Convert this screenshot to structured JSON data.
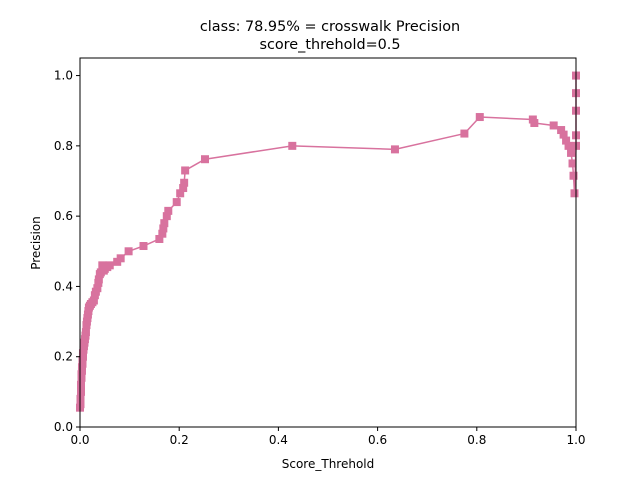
{
  "chart_data": {
    "type": "line",
    "title": "class: 78.95% = crosswalk Precision",
    "subtitle": "score_threhold=0.5",
    "xlabel": "Score_Threhold",
    "ylabel": "Precision",
    "xlim": [
      0.0,
      1.0
    ],
    "ylim": [
      0.0,
      1.05
    ],
    "xticks": [
      "0.0",
      "0.2",
      "0.4",
      "0.6",
      "0.8",
      "1.0"
    ],
    "yticks": [
      "0.0",
      "0.2",
      "0.4",
      "0.6",
      "0.8",
      "1.0"
    ],
    "grid": false,
    "legend": "none",
    "marker": "square",
    "color": "#d8729e",
    "series": [
      {
        "x": [
          0.0,
          0.001,
          0.001,
          0.002,
          0.002,
          0.003,
          0.003,
          0.004,
          0.004,
          0.005,
          0.005,
          0.006,
          0.006,
          0.007,
          0.008,
          0.009,
          0.01,
          0.011,
          0.012,
          0.013,
          0.014,
          0.015,
          0.016,
          0.017,
          0.018,
          0.02,
          0.022,
          0.025,
          0.028,
          0.03,
          0.032,
          0.035,
          0.037,
          0.038,
          0.04,
          0.042,
          0.045,
          0.048,
          0.05,
          0.055,
          0.06,
          0.075,
          0.082,
          0.098,
          0.128,
          0.16,
          0.166,
          0.168,
          0.17,
          0.175,
          0.178,
          0.195,
          0.202,
          0.208,
          0.21,
          0.212,
          0.252,
          0.428,
          0.635,
          0.775,
          0.806,
          0.913,
          0.916,
          0.955,
          0.97,
          0.975,
          0.98,
          0.985,
          0.99,
          0.993,
          0.995,
          0.997,
          1.0,
          1.0,
          1.0,
          1.0,
          1.0
        ],
        "y": [
          0.055,
          0.065,
          0.08,
          0.1,
          0.12,
          0.14,
          0.15,
          0.16,
          0.17,
          0.18,
          0.19,
          0.2,
          0.21,
          0.22,
          0.23,
          0.24,
          0.25,
          0.26,
          0.27,
          0.29,
          0.3,
          0.31,
          0.32,
          0.33,
          0.34,
          0.345,
          0.35,
          0.355,
          0.36,
          0.375,
          0.385,
          0.395,
          0.41,
          0.42,
          0.435,
          0.44,
          0.46,
          0.445,
          0.45,
          0.455,
          0.46,
          0.47,
          0.48,
          0.5,
          0.515,
          0.535,
          0.55,
          0.565,
          0.58,
          0.6,
          0.615,
          0.64,
          0.665,
          0.68,
          0.695,
          0.73,
          0.762,
          0.8,
          0.79,
          0.835,
          0.882,
          0.875,
          0.865,
          0.858,
          0.845,
          0.832,
          0.815,
          0.8,
          0.78,
          0.75,
          0.715,
          0.665,
          0.8,
          0.83,
          0.9,
          0.95,
          1.0
        ]
      }
    ]
  }
}
